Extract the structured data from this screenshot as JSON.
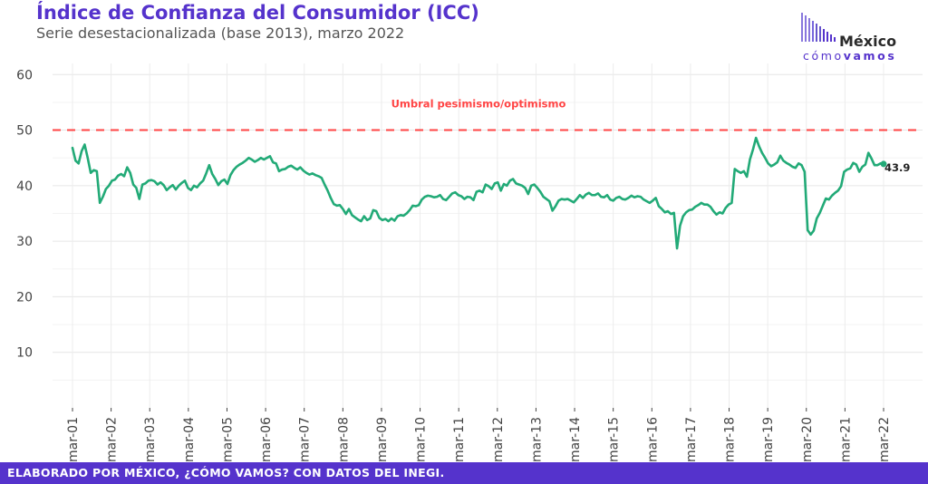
{
  "header": {
    "title": "Índice de Confianza del Consumidor (ICC)",
    "subtitle": "Serie desestacionalizada (base 2013), marzo 2022"
  },
  "logo": {
    "word": "México",
    "sub_light": "cómo",
    "sub_bold": "vamos"
  },
  "footer": {
    "text": "ELABORADO POR MÉXICO, ¿CÓMO VAMOS? CON DATOS DEL INEGI."
  },
  "colors": {
    "accent": "#5533cc",
    "series": "#22aa77",
    "threshold": "#ff4444"
  },
  "chart_data": {
    "type": "line",
    "title": "Índice de Confianza del Consumidor (ICC)",
    "subtitle": "Serie desestacionalizada (base 2013), marzo 2022",
    "xlabel": "",
    "ylabel": "",
    "ylim": [
      0,
      62
    ],
    "yticks": [
      10,
      20,
      30,
      40,
      50,
      60
    ],
    "xticks": [
      "mar-01",
      "mar-02",
      "mar-03",
      "mar-04",
      "mar-05",
      "mar-06",
      "mar-07",
      "mar-08",
      "mar-09",
      "mar-10",
      "mar-11",
      "mar-12",
      "mar-13",
      "mar-14",
      "mar-15",
      "mar-16",
      "mar-17",
      "mar-18",
      "mar-19",
      "mar-20",
      "mar-21",
      "mar-22"
    ],
    "grid": true,
    "threshold": {
      "value": 50,
      "label": "Umbral pesimismo/optimismo"
    },
    "last_label": "43.9",
    "series": [
      {
        "values": [
          46.8,
          44.5,
          44.0,
          46.2,
          47.4,
          45.0,
          42.3,
          42.8,
          42.6,
          36.9,
          38.0,
          39.4,
          40.0,
          40.9,
          41.1,
          41.8,
          42.1,
          41.7,
          43.3,
          42.3,
          40.2,
          39.6,
          37.6,
          40.2,
          40.4,
          40.9,
          41.0,
          40.8,
          40.2,
          40.6,
          40.1,
          39.2,
          39.7,
          40.1,
          39.3,
          40.0,
          40.5,
          40.9,
          39.6,
          39.2,
          40.0,
          39.7,
          40.4,
          40.9,
          42.2,
          43.7,
          42.1,
          41.2,
          40.1,
          40.8,
          41.1,
          40.3,
          41.9,
          42.8,
          43.4,
          43.8,
          44.1,
          44.5,
          45.0,
          44.7,
          44.3,
          44.6,
          45.0,
          44.7,
          45.0,
          45.3,
          44.2,
          44.0,
          42.6,
          42.9,
          43.0,
          43.4,
          43.6,
          43.2,
          42.9,
          43.3,
          42.7,
          42.3,
          42.0,
          42.2,
          41.9,
          41.7,
          41.4,
          40.2,
          39.1,
          37.8,
          36.7,
          36.4,
          36.5,
          35.8,
          34.9,
          35.8,
          34.7,
          34.3,
          33.9,
          33.6,
          34.5,
          33.8,
          34.1,
          35.6,
          35.4,
          34.2,
          33.8,
          34.0,
          33.6,
          34.1,
          33.7,
          34.5,
          34.7,
          34.6,
          35.0,
          35.6,
          36.4,
          36.3,
          36.5,
          37.5,
          38.0,
          38.2,
          38.1,
          37.9,
          38.0,
          38.3,
          37.6,
          37.4,
          38.0,
          38.6,
          38.8,
          38.3,
          38.1,
          37.6,
          38.0,
          37.9,
          37.4,
          38.9,
          39.1,
          38.8,
          40.2,
          39.9,
          39.4,
          40.4,
          40.6,
          39.1,
          40.3,
          40.0,
          40.9,
          41.2,
          40.4,
          40.2,
          40.0,
          39.6,
          38.5,
          40.0,
          40.2,
          39.6,
          38.9,
          38.0,
          37.6,
          37.2,
          35.5,
          36.3,
          37.3,
          37.6,
          37.5,
          37.6,
          37.3,
          37.0,
          37.6,
          38.3,
          37.8,
          38.4,
          38.7,
          38.3,
          38.3,
          38.6,
          38.0,
          37.9,
          38.3,
          37.5,
          37.3,
          37.8,
          38.0,
          37.6,
          37.5,
          37.8,
          38.2,
          37.9,
          38.1,
          38.0,
          37.5,
          37.2,
          36.9,
          37.3,
          37.8,
          36.3,
          35.8,
          35.2,
          35.4,
          34.9,
          35.1,
          28.7,
          32.8,
          34.5,
          35.2,
          35.6,
          35.7,
          36.2,
          36.5,
          36.9,
          36.6,
          36.6,
          36.2,
          35.4,
          34.8,
          35.2,
          35.0,
          36.0,
          36.6,
          36.9,
          43.0,
          42.6,
          42.3,
          42.6,
          41.6,
          44.7,
          46.5,
          48.6,
          47.1,
          45.9,
          45.0,
          44.0,
          43.5,
          43.8,
          44.2,
          45.4,
          44.5,
          44.1,
          43.8,
          43.4,
          43.2,
          44.0,
          43.7,
          42.5,
          32.0,
          31.2,
          31.9,
          34.1,
          35.1,
          36.4,
          37.7,
          37.5,
          38.2,
          38.7,
          39.1,
          39.9,
          42.5,
          42.9,
          43.1,
          44.1,
          43.8,
          42.5,
          43.4,
          43.8,
          45.9,
          44.9,
          43.7,
          43.7,
          44.0,
          43.9
        ]
      }
    ]
  }
}
